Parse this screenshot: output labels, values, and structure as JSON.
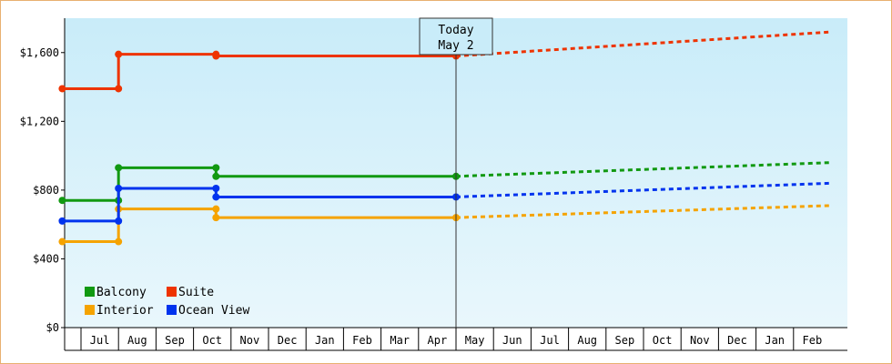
{
  "chart_data": {
    "type": "line",
    "step": true,
    "title": "",
    "xlabel": "",
    "ylabel": "",
    "ylim": [
      0,
      1800
    ],
    "y_ticks": [
      0,
      400,
      800,
      1200,
      1600
    ],
    "y_tick_labels": [
      "$0",
      "$400",
      "$800",
      "$1,200",
      "$1,600"
    ],
    "x_categories": [
      "Jul",
      "Aug",
      "Sep",
      "Oct",
      "Nov",
      "Dec",
      "Jan",
      "Feb",
      "Mar",
      "Apr",
      "May",
      "Jun",
      "Jul",
      "Aug",
      "Sep",
      "Oct",
      "Nov",
      "Dec",
      "Jan",
      "Feb"
    ],
    "today": {
      "line1": "Today",
      "line2": "May 2",
      "x": 10.0
    },
    "legend": {
      "placement": "bottom-left"
    },
    "grid": false,
    "background": {
      "top": "#c9ecf9",
      "bottom": "#e9f7fc"
    },
    "series": [
      {
        "name": "Balcony",
        "color": "#119911",
        "points": [
          [
            -0.5,
            740
          ],
          [
            1.0,
            740
          ],
          [
            1.0,
            930
          ],
          [
            3.6,
            930
          ],
          [
            3.6,
            880
          ],
          [
            10.0,
            880
          ]
        ],
        "markers": [
          [
            -0.5,
            740
          ],
          [
            1.0,
            740
          ],
          [
            1.0,
            930
          ],
          [
            3.6,
            930
          ],
          [
            3.6,
            880
          ],
          [
            10.0,
            880
          ]
        ],
        "forecast": [
          [
            10.0,
            880
          ],
          [
            20.0,
            960
          ]
        ]
      },
      {
        "name": "Suite",
        "color": "#ee3300",
        "points": [
          [
            -0.5,
            1390
          ],
          [
            1.0,
            1390
          ],
          [
            1.0,
            1590
          ],
          [
            3.6,
            1590
          ],
          [
            3.6,
            1580
          ],
          [
            10.0,
            1580
          ]
        ],
        "markers": [
          [
            -0.5,
            1390
          ],
          [
            1.0,
            1390
          ],
          [
            1.0,
            1590
          ],
          [
            3.6,
            1590
          ],
          [
            3.6,
            1580
          ],
          [
            10.0,
            1580
          ]
        ],
        "forecast": [
          [
            10.0,
            1580
          ],
          [
            20.0,
            1720
          ]
        ]
      },
      {
        "name": "Interior",
        "color": "#f5a300",
        "points": [
          [
            -0.5,
            500
          ],
          [
            1.0,
            500
          ],
          [
            1.0,
            690
          ],
          [
            3.6,
            690
          ],
          [
            3.6,
            640
          ],
          [
            10.0,
            640
          ]
        ],
        "markers": [
          [
            -0.5,
            500
          ],
          [
            1.0,
            500
          ],
          [
            1.0,
            690
          ],
          [
            3.6,
            690
          ],
          [
            3.6,
            640
          ],
          [
            10.0,
            640
          ]
        ],
        "forecast": [
          [
            10.0,
            640
          ],
          [
            20.0,
            710
          ]
        ]
      },
      {
        "name": "Ocean View",
        "color": "#0033ee",
        "points": [
          [
            -0.5,
            620
          ],
          [
            1.0,
            620
          ],
          [
            1.0,
            810
          ],
          [
            3.6,
            810
          ],
          [
            3.6,
            760
          ],
          [
            10.0,
            760
          ]
        ],
        "markers": [
          [
            -0.5,
            620
          ],
          [
            1.0,
            620
          ],
          [
            1.0,
            810
          ],
          [
            3.6,
            810
          ],
          [
            3.6,
            760
          ],
          [
            10.0,
            760
          ]
        ],
        "forecast": [
          [
            10.0,
            760
          ],
          [
            20.0,
            840
          ]
        ]
      }
    ]
  }
}
